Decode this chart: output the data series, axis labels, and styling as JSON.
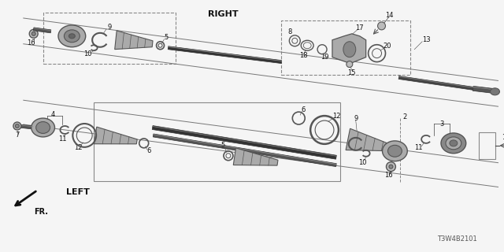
{
  "bg_color": "#f5f5f5",
  "diagram_code": "T3W4B2101",
  "right_label": "RIGHT",
  "left_label": "LEFT",
  "fr_label": "FR.",
  "lc": "#444444",
  "pc": "#666666",
  "dark": "#222222",
  "gray": "#999999",
  "lgray": "#bbbbbb",
  "dgray": "#555555"
}
